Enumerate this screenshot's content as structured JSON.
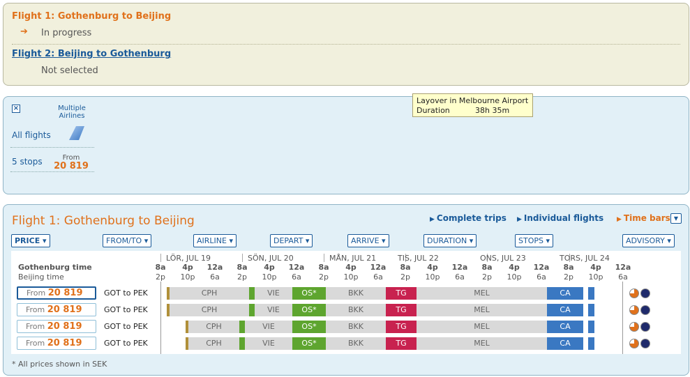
{
  "itinerary": {
    "flight1_title": "Flight 1: Gothenburg to Beijing",
    "flight1_status": "In progress",
    "flight2_title": "Flight 2: Beijing to Gothenburg",
    "flight2_status": "Not selected"
  },
  "filter": {
    "close_icon": "close-icon",
    "airline_label": "Multiple Airlines",
    "all_flights": "All flights",
    "stops_label": "5 stops",
    "from_label": "From",
    "from_price": "20 819"
  },
  "results": {
    "title": "Flight 1: Gothenburg to Beijing",
    "views": [
      "Complete trips",
      "Individual flights",
      "Time bars"
    ],
    "sort_buttons": [
      "PRICE",
      "FROM/TO",
      "AIRLINE",
      "DEPART",
      "ARRIVE",
      "DURATION",
      "STOPS",
      "ADVISORY"
    ],
    "gothenburg_time": "Gothenburg time",
    "beijing_time": "Beijing time",
    "days": [
      "LÖR, JUL 19",
      "SÖN, JUL 20",
      "MÅN, JUL 21",
      "TIS, JUL 22",
      "ONS, JUL 23",
      "TORS, JUL 24"
    ],
    "ticks_top": [
      "8a",
      "4p",
      "12a",
      "8a",
      "4p",
      "12a",
      "8a",
      "4p",
      "12a",
      "8a",
      "4p",
      "12a",
      "8a",
      "4p",
      "12a",
      "8a",
      "4p",
      "12a"
    ],
    "ticks_bottom": [
      "2p",
      "10p",
      "6a",
      "2p",
      "10p",
      "6a",
      "2p",
      "10p",
      "6a",
      "2p",
      "10p",
      "6a",
      "2p",
      "10p",
      "6a",
      "2p",
      "10p",
      "6a"
    ],
    "rows": [
      {
        "from": "From",
        "price": "20 819",
        "route": "GOT to PEK",
        "stops": [
          "CPH",
          "VIE",
          "OS*",
          "BKK",
          "TG",
          "MEL",
          "CA"
        ]
      },
      {
        "from": "From",
        "price": "20 819",
        "route": "GOT to PEK",
        "stops": [
          "CPH",
          "VIE",
          "OS*",
          "BKK",
          "TG",
          "MEL",
          "CA"
        ]
      },
      {
        "from": "From",
        "price": "20 819",
        "route": "GOT to PEK",
        "stops": [
          "CPH",
          "VIE",
          "OS*",
          "BKK",
          "TG",
          "MEL",
          "CA"
        ]
      },
      {
        "from": "From",
        "price": "20 819",
        "route": "GOT to PEK",
        "stops": [
          "CPH",
          "VIE",
          "OS*",
          "BKK",
          "TG",
          "MEL",
          "CA"
        ]
      }
    ],
    "tooltip": {
      "line1": "Layover in Melbourne Airport",
      "label2": "Duration",
      "value2": "38h 35m"
    },
    "footnote": "* All prices shown in SEK"
  }
}
